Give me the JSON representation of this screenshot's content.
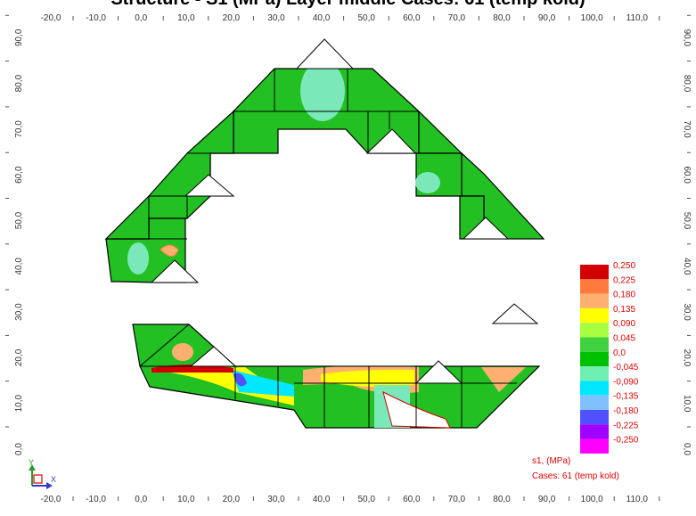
{
  "title": "Structure - S1 (MPa) Layer middle Cases: 61 (temp kold)",
  "x_axis_ticks": [
    "-20,0",
    "-10,0",
    "0,0",
    "10,0",
    "20,0",
    "30,0",
    "40,0",
    "50,0",
    "60,0",
    "70,0",
    "80,0",
    "90,0",
    "100,0",
    "110,0"
  ],
  "y_axis_ticks": [
    "0,0",
    "10,0",
    "20,0",
    "30,0",
    "40,0",
    "50,0",
    "60,0",
    "70,0",
    "80,0",
    "90,0"
  ],
  "legend": {
    "labels": [
      "0,250",
      "0,225",
      "0,180",
      "0,135",
      "0,090",
      "0,045",
      "0,0",
      "-0,045",
      "-0,090",
      "-0,135",
      "-0,180",
      "-0,225",
      "-0,250"
    ],
    "colors": [
      "#d40000",
      "#ff7a3c",
      "#ffb070",
      "#ffff00",
      "#a8ff40",
      "#40d040",
      "#00c000",
      "#70f0b0",
      "#00e8ff",
      "#80c0ff",
      "#5050ff",
      "#a000ff",
      "#ff00ff"
    ]
  },
  "result_label": "s1, (MPa)",
  "case_label": "Cases: 61 (temp kold)",
  "axis_labels": {
    "x": "X",
    "y": "Y"
  },
  "colors": {
    "plate": "#22c022",
    "plate_light": "#7ae8b8",
    "edge": "#000000",
    "tick_text": "#333333",
    "legend_text": "#e00000"
  }
}
